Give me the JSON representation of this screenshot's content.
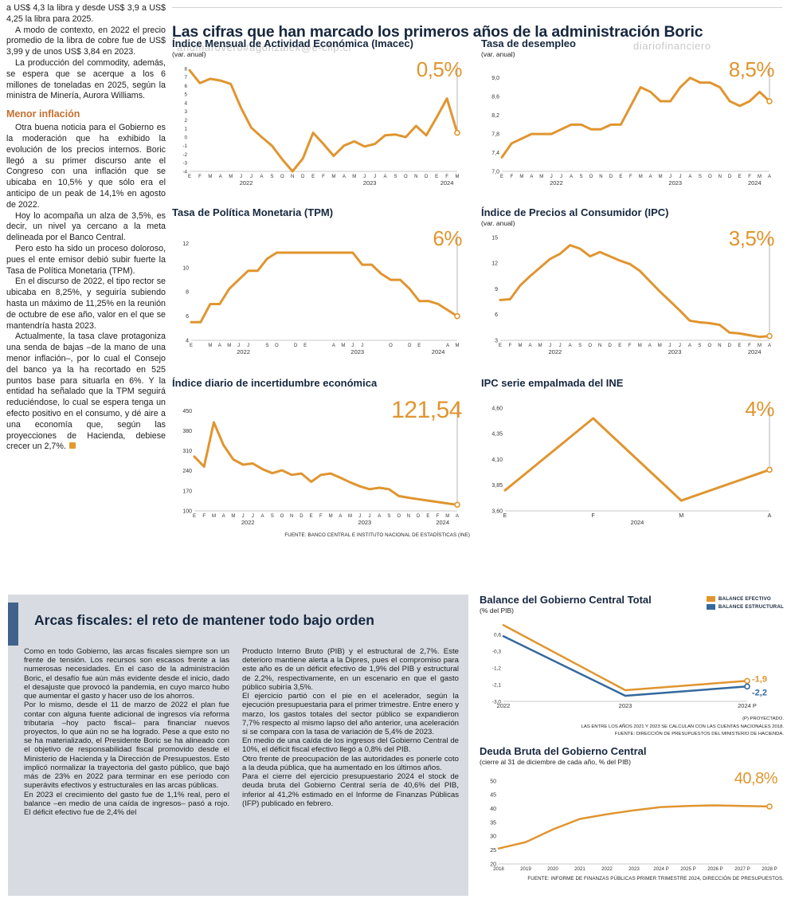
{
  "colors": {
    "orange": "#E0952F",
    "blue": "#33699E",
    "navy": "#16273F",
    "panel_gray": "#D8DCE2",
    "accent_bar": "#40628B",
    "subhead_orange": "#C4702F"
  },
  "watermarks": {
    "w1": "ahumarovero#agonzalek@e-clip.cl",
    "w2": "diariofinanciero",
    "w3": "ahumarovero#agonzalek@e-clip.cl"
  },
  "header": {
    "headline": "Las cifras que han marcado los primeros años de la administración Boric"
  },
  "left_article": {
    "p0": "a US$ 4,3 la libra y desde US$ 3,9 a US$ 4,25 la libra para 2025.",
    "p1": "A modo de contexto, en 2022 el precio promedio de la libra de cobre fue de US$ 3,99 y de unos US$ 3,84 en 2023.",
    "p2": "La producción del commodity, además, se espera que se acerque a los 6 millones de toneladas en 2025, según la ministra de Minería, Aurora Williams.",
    "subhead": "Menor inflación",
    "p3": "Otra buena noticia para el Gobierno es la moderación que ha exhibido la evolución de los precios internos. Boric llegó a su primer discurso ante el Congreso con una inflación que se ubicaba en 10,5% y que sólo era el anticipo de un peak de 14,1% en agosto de 2022.",
    "p4": "Hoy lo acompaña un alza de 3,5%, es decir, un nivel ya cercano a la meta delineada por el Banco Central.",
    "p5": "Pero esto ha sido un proceso doloroso, pues el ente emisor debió subir fuerte la Tasa de Política Monetaria (TPM).",
    "p6": "En el discurso de 2022, el tipo rector se ubicaba en 8,25%, y seguiría subiendo hasta un máximo de 11,25% en la reunión de octubre de ese año, valor en el que se mantendría hasta 2023.",
    "p7": "Actualmente, la tasa clave protagoniza una senda de bajas –de la mano de una menor inflación–, por lo cual el Consejo del banco ya la ha recortado en 525 puntos base para situarla en 6%. Y la entidad ha señalado que la TPM seguirá reduciéndose, lo cual se espera tenga un efecto positivo en el consumo, y dé aire a una economía que, según las proyecciones de Hacienda, debiese crecer un 2,7%."
  },
  "arcas": {
    "headline": "Arcas fiscales: el reto de mantener todo bajo orden",
    "c1p0": "Como en todo Gobierno, las arcas fiscales siempre son un frente de tensión. Los recursos son escasos frente a las numerosas necesidades. En el caso de la administración Boric, el desafío fue aún más evidente desde el inicio, dado el desajuste que provocó la pandemia, en cuyo marco hubo que aumentar el gasto y hacer uso de los ahorros.",
    "c1p1": "Por lo mismo, desde el 11 de marzo de 2022 el plan fue contar con alguna fuente adicional de ingresos vía reforma tributaria –hoy pacto fiscal– para financiar nuevos proyectos, lo que aún no se ha logrado. Pese a que esto no se ha materializado, el Presidente Boric se ha alineado con el objetivo de responsabilidad fiscal promovido desde el Ministerio de Hacienda y la Dirección de Presupuestos. Esto implicó normalizar la trayectoria del gasto público, que bajó más de 23% en 2022 para terminar en ese período con superávits efectivos y estructurales en las arcas públicas.",
    "c1p2": "En 2023 el crecimiento del gasto fue de 1,1% real, pero el balance –en medio de una caída de ingresos– pasó a rojo. El déficit efectivo fue de 2,4% del",
    "c2p0": "Producto Interno Bruto (PIB) y el estructural de 2,7%. Este deterioro mantiene alerta a la Dipres, pues el compromiso para este año es de un déficit efectivo de 1,9% del PIB y estructural de 2,2%, respectivamente, en un escenario en que el gasto público subiría 3,5%.",
    "c2p1": "El ejercicio partió con el pie en el acelerador, según la ejecución presupuestaria para el primer trimestre. Entre enero y marzo, los gastos totales del sector público se expandieron 7,7% respecto al mismo lapso del año anterior, una aceleración si se compara con la tasa de variación de 5,4% de 2023.",
    "c2p2": "En medio de una caída de los ingresos del Gobierno Central de 10%, el déficit fiscal efectivo llegó a 0,8% del PIB.",
    "c2p3": "Otro frente de preocupación de las autoridades es ponerle coto a la deuda pública, que ha aumentado en los últimos años.",
    "c2p4": "Para el cierre del ejercicio presupuestario 2024 el stock de deuda bruta del Gobierno Central sería de 40,6% del PIB, inferior al 41,2% estimado en el Informe de Finanzas Públicas (IFP) publicado en febrero."
  },
  "chart_data": [
    {
      "id": "imacec",
      "type": "line",
      "title": "Índice Mensual de Actividad Económica (Imacec)",
      "subtitle": "(var. anual)",
      "big_label": "0,5%",
      "ylim": [
        -4,
        8
      ],
      "stroke": 3,
      "guide": true,
      "ytick_size": 6.3,
      "pad": {
        "l": 22,
        "r": 16,
        "t": 10,
        "b": 26
      },
      "yticks": [
        {
          "v": 8,
          "l": "8"
        },
        {
          "v": 7,
          "l": "7"
        },
        {
          "v": 6,
          "l": "6"
        },
        {
          "v": 5,
          "l": "5"
        },
        {
          "v": 4,
          "l": "4"
        },
        {
          "v": 3,
          "l": "3"
        },
        {
          "v": 2,
          "l": "2"
        },
        {
          "v": 1,
          "l": "1"
        },
        {
          "v": 0,
          "l": "0"
        },
        {
          "v": -1,
          "l": "-1"
        },
        {
          "v": -2,
          "l": "-2"
        },
        {
          "v": -3,
          "l": "-3"
        },
        {
          "v": -4,
          "l": "-4"
        }
      ],
      "x_labels": [
        "E",
        "F",
        "M",
        "A",
        "M",
        "J",
        "J",
        "A",
        "S",
        "O",
        "N",
        "D",
        "E",
        "F",
        "M",
        "A",
        "M",
        "J",
        "J",
        "A",
        "S",
        "O",
        "N",
        "D",
        "E",
        "F",
        "M"
      ],
      "years": [
        {
          "label": "2022",
          "i": 5.5
        },
        {
          "label": "2023",
          "i": 17.5
        },
        {
          "label": "2024",
          "i": 25
        }
      ],
      "values": [
        7.8,
        6.3,
        6.8,
        6.6,
        6.2,
        3.4,
        1.1,
        0.0,
        -1.0,
        -2.6,
        -4.0,
        -2.5,
        0.5,
        -0.8,
        -2.2,
        -1.0,
        -0.5,
        -1.1,
        -0.8,
        0.2,
        0.3,
        0.0,
        1.3,
        0.2,
        2.3,
        4.5,
        0.5
      ]
    },
    {
      "id": "desempleo",
      "type": "line",
      "title": "Tasa de desempleo",
      "subtitle": "(var. anual)",
      "big_label": "8,5%",
      "ylim": [
        7.0,
        9.2
      ],
      "stroke": 3,
      "guide": true,
      "pad": {
        "l": 26,
        "r": 16,
        "t": 10,
        "b": 26
      },
      "yticks": [
        {
          "v": 9.0,
          "l": "9,0"
        },
        {
          "v": 8.6,
          "l": "8,6"
        },
        {
          "v": 8.2,
          "l": "8,2"
        },
        {
          "v": 7.8,
          "l": "7,8"
        },
        {
          "v": 7.4,
          "l": "7,4"
        },
        {
          "v": 7.0,
          "l": "7,0"
        }
      ],
      "x_labels": [
        "E",
        "F",
        "M",
        "A",
        "M",
        "J",
        "J",
        "A",
        "S",
        "O",
        "N",
        "D",
        "E",
        "F",
        "M",
        "A",
        "M",
        "J",
        "J",
        "A",
        "S",
        "O",
        "N",
        "D",
        "E",
        "F",
        "M",
        "A"
      ],
      "years": [
        {
          "label": "2022",
          "i": 5.5
        },
        {
          "label": "2023",
          "i": 17.5
        },
        {
          "label": "2024",
          "i": 25.5
        }
      ],
      "values": [
        7.3,
        7.6,
        7.7,
        7.8,
        7.8,
        7.8,
        7.9,
        8.0,
        8.0,
        7.9,
        7.9,
        8.0,
        8.0,
        8.4,
        8.8,
        8.7,
        8.5,
        8.5,
        8.8,
        9.0,
        8.9,
        8.9,
        8.8,
        8.5,
        8.4,
        8.5,
        8.7,
        8.5
      ]
    },
    {
      "id": "tpm",
      "type": "line",
      "title": "Tasa de Política Monetaria (TPM)",
      "big_label": "6%",
      "ylim": [
        4,
        12.5
      ],
      "stroke": 3,
      "guide": true,
      "pad": {
        "l": 24,
        "r": 16,
        "t": 10,
        "b": 26
      },
      "yticks": [
        {
          "v": 12,
          "l": "12"
        },
        {
          "v": 10,
          "l": "10"
        },
        {
          "v": 8,
          "l": "8"
        },
        {
          "v": 6,
          "l": "6"
        },
        {
          "v": 4,
          "l": "4"
        }
      ],
      "x_labels": [
        "E",
        "",
        "M",
        "A",
        "M",
        "J",
        "J",
        "",
        "S",
        "O",
        "",
        "D",
        "E",
        "",
        "",
        "A",
        "M",
        "J",
        "J",
        "",
        "",
        "O",
        "",
        "D",
        "E",
        "",
        "",
        "A",
        "M"
      ],
      "years": [
        {
          "label": "2022",
          "i": 5.5
        },
        {
          "label": "2023",
          "i": 17.5
        },
        {
          "label": "2024",
          "i": 26
        }
      ],
      "values": [
        5.5,
        5.5,
        7.0,
        7.0,
        8.25,
        9.0,
        9.75,
        9.75,
        10.75,
        11.25,
        11.25,
        11.25,
        11.25,
        11.25,
        11.25,
        11.25,
        11.25,
        11.25,
        10.25,
        10.25,
        9.5,
        9.0,
        9.0,
        8.25,
        7.25,
        7.25,
        7.0,
        6.5,
        6.0
      ]
    },
    {
      "id": "ipc",
      "type": "line",
      "title": "Índice de Precios al Consumidor (IPC)",
      "subtitle": "(var. anual)",
      "big_label": "3,5%",
      "ylim": [
        3,
        15
      ],
      "stroke": 3,
      "guide": true,
      "pad": {
        "l": 24,
        "r": 16,
        "t": 10,
        "b": 26
      },
      "yticks": [
        {
          "v": 15,
          "l": "15"
        },
        {
          "v": 12,
          "l": "12"
        },
        {
          "v": 9,
          "l": "9"
        },
        {
          "v": 6,
          "l": "6"
        },
        {
          "v": 3,
          "l": "3"
        }
      ],
      "x_labels": [
        "E",
        "F",
        "M",
        "A",
        "M",
        "J",
        "J",
        "A",
        "S",
        "O",
        "N",
        "D",
        "E",
        "F",
        "M",
        "A",
        "M",
        "J",
        "J",
        "A",
        "S",
        "O",
        "N",
        "D",
        "E",
        "F",
        "M",
        "A"
      ],
      "years": [
        {
          "label": "2022",
          "i": 5.5
        },
        {
          "label": "2023",
          "i": 17.5
        },
        {
          "label": "2024",
          "i": 25.5
        }
      ],
      "values": [
        7.7,
        7.8,
        9.4,
        10.5,
        11.5,
        12.5,
        13.1,
        14.1,
        13.7,
        12.8,
        13.3,
        12.8,
        12.3,
        11.9,
        11.1,
        9.9,
        8.7,
        7.6,
        6.5,
        5.3,
        5.1,
        5.0,
        4.8,
        3.9,
        3.8,
        3.6,
        3.4,
        3.5
      ]
    },
    {
      "id": "incertidumbre",
      "type": "line",
      "title": "Índice diario de incertidumbre económica",
      "big_label": "121,54",
      "source": "FUENTE: BANCO CENTRAL E INSTITUTO NACIONAL DE ESTADÍSTICAS (INE)",
      "ylim": [
        100,
        460
      ],
      "stroke": 3,
      "guide": true,
      "pad": {
        "l": 28,
        "r": 16,
        "t": 10,
        "b": 26
      },
      "yticks": [
        {
          "v": 450,
          "l": "450"
        },
        {
          "v": 380,
          "l": "380"
        },
        {
          "v": 310,
          "l": "310"
        },
        {
          "v": 240,
          "l": "240"
        },
        {
          "v": 170,
          "l": "170"
        },
        {
          "v": 100,
          "l": "100"
        }
      ],
      "x_labels": [
        "E",
        "F",
        "M",
        "A",
        "M",
        "J",
        "J",
        "A",
        "S",
        "O",
        "N",
        "D",
        "E",
        "F",
        "M",
        "A",
        "M",
        "J",
        "J",
        "A",
        "S",
        "O",
        "N",
        "D",
        "E",
        "F",
        "M",
        "A"
      ],
      "years": [
        {
          "label": "2022",
          "i": 5.5
        },
        {
          "label": "2023",
          "i": 17.5
        },
        {
          "label": "2024",
          "i": 25.5
        }
      ],
      "values": [
        290,
        255,
        410,
        330,
        280,
        262,
        266,
        246,
        232,
        242,
        226,
        231,
        202,
        226,
        231,
        216,
        200,
        186,
        176,
        181,
        176,
        152,
        146,
        141,
        136,
        131,
        126,
        121.54
      ]
    },
    {
      "id": "ipc_empalmada",
      "type": "line",
      "title": "IPC serie empalmada del INE",
      "big_label": "4%",
      "ylim": [
        3.6,
        4.6
      ],
      "stroke": 3,
      "guide": true,
      "pad": {
        "l": 30,
        "r": 16,
        "t": 10,
        "b": 26
      },
      "yticks": [
        {
          "v": 4.6,
          "l": "4,60"
        },
        {
          "v": 4.35,
          "l": "4,35"
        },
        {
          "v": 4.1,
          "l": "4,10"
        },
        {
          "v": 3.85,
          "l": "3,85"
        },
        {
          "v": 3.6,
          "l": "3,60"
        }
      ],
      "x_labels": [
        "E",
        "F",
        "M",
        "A"
      ],
      "xtick_size": 7,
      "years": [
        {
          "label": "2024",
          "i": 1.5
        }
      ],
      "values": [
        3.8,
        4.5,
        3.7,
        4.0
      ]
    },
    {
      "id": "balance",
      "type": "line",
      "title": "Balance del Gobierno Central Total",
      "subtitle": "(% del PIB)",
      "note1": "(P) PROYECTADO.",
      "note2": "LAS ENTRE LOS AÑOS 2021 Y 2023 SE CALCULAN  CON LAS CUENTAS NACIONALES 2018.",
      "note3": "FUENTE: DIRECCIÓN DE PRESUPUESTOS DEL MINISTERIO DE HACIENDA.",
      "ylim": [
        -3.0,
        1.2
      ],
      "stroke": 2.5,
      "guide": false,
      "pad": {
        "l": 30,
        "r": 46,
        "t": 8,
        "b": 16
      },
      "ytick_size": 6.5,
      "xtick_size": 7.5,
      "yticks": [
        {
          "v": 0.6,
          "l": "0,6"
        },
        {
          "v": -0.3,
          "l": "-0,3"
        },
        {
          "v": -1.2,
          "l": "-1,2"
        },
        {
          "v": -2.1,
          "l": "-2,1"
        },
        {
          "v": -3.0,
          "l": "-3,0"
        }
      ],
      "x_labels": [
        "2022",
        "2023",
        "2024 P"
      ],
      "years": [],
      "series": [
        {
          "name": "BALANCE EFECTIVO",
          "color": "orange",
          "values": [
            1.1,
            -2.4,
            -1.9
          ],
          "end_label": "-1,9",
          "label_dy": -2
        },
        {
          "name": "BALANCE ESTRUCTURAL",
          "color": "blue",
          "values": [
            0.5,
            -2.7,
            -2.2
          ],
          "end_label": "-2,2",
          "label_dy": 8
        }
      ]
    },
    {
      "id": "deuda",
      "type": "line",
      "title": "Deuda Bruta del Gobierno Central",
      "subtitle": "(cierre al 31 de diciembre de cada año, % del PIB)",
      "big_label": "40,8%",
      "source": "FUENTE: INFORME DE FINANZAS PÚBLICAS PRIMER TRIMESTRE 2024, DIRECCIÓN DE PRESUPUESTOS.",
      "ylim": [
        20,
        50
      ],
      "stroke": 2.5,
      "guide": false,
      "pad": {
        "l": 24,
        "r": 18,
        "t": 16,
        "b": 14
      },
      "xtick_size": 6.2,
      "yticks": [
        {
          "v": 50,
          "l": "50"
        },
        {
          "v": 45,
          "l": "45"
        },
        {
          "v": 40,
          "l": "40"
        },
        {
          "v": 35,
          "l": "35"
        },
        {
          "v": 30,
          "l": "30"
        },
        {
          "v": 25,
          "l": "25"
        },
        {
          "v": 20,
          "l": "20"
        }
      ],
      "x_labels": [
        "2018",
        "2019",
        "2020",
        "2021",
        "2022",
        "2023",
        "2024 P",
        "2025 P",
        "2026 P",
        "2027 P",
        "2028 P"
      ],
      "years": [],
      "values": [
        25.6,
        27.9,
        32.5,
        36.3,
        38.0,
        39.4,
        40.6,
        41.0,
        41.2,
        41.0,
        40.8
      ]
    }
  ]
}
